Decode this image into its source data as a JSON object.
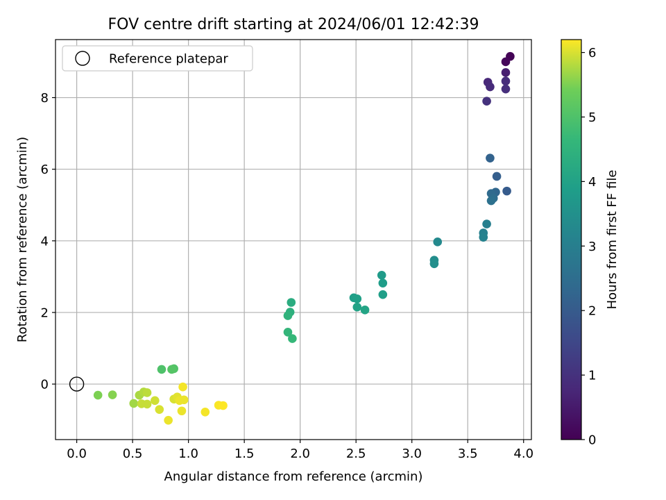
{
  "chart_data": {
    "type": "scatter",
    "title": "FOV centre drift starting at 2024/06/01 12:42:39",
    "xlabel": "Angular distance from reference (arcmin)",
    "ylabel": "Rotation from reference (arcmin)",
    "xlim": [
      -0.19,
      4.07
    ],
    "ylim": [
      -1.55,
      9.62
    ],
    "xticks": [
      0.0,
      0.5,
      1.0,
      1.5,
      2.0,
      2.5,
      3.0,
      3.5,
      4.0
    ],
    "xtick_labels": [
      "0.0",
      "0.5",
      "1.0",
      "1.5",
      "2.0",
      "2.5",
      "3.0",
      "3.5",
      "4.0"
    ],
    "yticks": [
      0,
      2,
      4,
      6,
      8
    ],
    "ytick_labels": [
      "0",
      "2",
      "4",
      "6",
      "8"
    ],
    "grid": true,
    "legend": {
      "placement": "top-left",
      "entries": [
        "Reference platepar"
      ]
    },
    "reference": {
      "x": 0.0,
      "y": 0.0,
      "label": "Reference platepar"
    },
    "colorbar": {
      "label": "Hours from first FF file",
      "range": [
        0,
        6.2
      ],
      "ticks": [
        0,
        1,
        2,
        3,
        4,
        5,
        6
      ],
      "tick_labels": [
        "0",
        "1",
        "2",
        "3",
        "4",
        "5",
        "6"
      ]
    },
    "points": [
      {
        "x": 3.88,
        "y": 9.15,
        "h": 0.05
      },
      {
        "x": 3.84,
        "y": 9.0,
        "h": 0.12
      },
      {
        "x": 3.84,
        "y": 8.7,
        "h": 0.6
      },
      {
        "x": 3.68,
        "y": 8.43,
        "h": 0.8
      },
      {
        "x": 3.7,
        "y": 8.3,
        "h": 0.85
      },
      {
        "x": 3.84,
        "y": 8.46,
        "h": 0.9
      },
      {
        "x": 3.84,
        "y": 8.24,
        "h": 0.95
      },
      {
        "x": 3.67,
        "y": 7.9,
        "h": 1.0
      },
      {
        "x": 3.7,
        "y": 6.31,
        "h": 2.2
      },
      {
        "x": 3.76,
        "y": 5.8,
        "h": 2.1
      },
      {
        "x": 3.85,
        "y": 5.39,
        "h": 2.0
      },
      {
        "x": 3.75,
        "y": 5.36,
        "h": 2.3
      },
      {
        "x": 3.71,
        "y": 5.32,
        "h": 2.4
      },
      {
        "x": 3.73,
        "y": 5.19,
        "h": 2.5
      },
      {
        "x": 3.71,
        "y": 5.12,
        "h": 2.6
      },
      {
        "x": 3.67,
        "y": 4.47,
        "h": 3.0
      },
      {
        "x": 3.64,
        "y": 4.22,
        "h": 3.05
      },
      {
        "x": 3.64,
        "y": 4.1,
        "h": 3.1
      },
      {
        "x": 3.23,
        "y": 3.97,
        "h": 3.3
      },
      {
        "x": 3.2,
        "y": 3.46,
        "h": 3.4
      },
      {
        "x": 3.2,
        "y": 3.36,
        "h": 3.45
      },
      {
        "x": 2.73,
        "y": 3.04,
        "h": 3.8
      },
      {
        "x": 2.74,
        "y": 2.82,
        "h": 3.85
      },
      {
        "x": 2.74,
        "y": 2.5,
        "h": 3.9
      },
      {
        "x": 2.48,
        "y": 2.41,
        "h": 3.9
      },
      {
        "x": 2.51,
        "y": 2.38,
        "h": 3.95
      },
      {
        "x": 2.51,
        "y": 2.15,
        "h": 4.0
      },
      {
        "x": 2.58,
        "y": 2.07,
        "h": 4.05
      },
      {
        "x": 1.92,
        "y": 2.28,
        "h": 4.3
      },
      {
        "x": 1.91,
        "y": 2.01,
        "h": 4.4
      },
      {
        "x": 1.89,
        "y": 1.91,
        "h": 4.5
      },
      {
        "x": 1.89,
        "y": 1.45,
        "h": 4.6
      },
      {
        "x": 1.93,
        "y": 1.27,
        "h": 4.65
      },
      {
        "x": 0.76,
        "y": 0.41,
        "h": 5.0
      },
      {
        "x": 0.87,
        "y": 0.43,
        "h": 5.05
      },
      {
        "x": 0.85,
        "y": 0.41,
        "h": 5.1
      },
      {
        "x": 0.19,
        "y": -0.31,
        "h": 5.5
      },
      {
        "x": 0.32,
        "y": -0.3,
        "h": 5.55
      },
      {
        "x": 0.51,
        "y": -0.54,
        "h": 5.7
      },
      {
        "x": 0.56,
        "y": -0.31,
        "h": 5.75
      },
      {
        "x": 0.6,
        "y": -0.22,
        "h": 5.8
      },
      {
        "x": 0.63,
        "y": -0.24,
        "h": 5.85
      },
      {
        "x": 0.58,
        "y": -0.55,
        "h": 5.9
      },
      {
        "x": 0.63,
        "y": -0.56,
        "h": 5.9
      },
      {
        "x": 0.7,
        "y": -0.46,
        "h": 5.95
      },
      {
        "x": 0.74,
        "y": -0.71,
        "h": 6.0
      },
      {
        "x": 0.82,
        "y": -1.01,
        "h": 6.1
      },
      {
        "x": 0.87,
        "y": -0.42,
        "h": 6.0
      },
      {
        "x": 0.9,
        "y": -0.36,
        "h": 6.05
      },
      {
        "x": 0.92,
        "y": -0.46,
        "h": 6.1
      },
      {
        "x": 0.94,
        "y": -0.75,
        "h": 6.1
      },
      {
        "x": 0.96,
        "y": -0.44,
        "h": 6.1
      },
      {
        "x": 0.95,
        "y": -0.08,
        "h": 6.15
      },
      {
        "x": 1.15,
        "y": -0.78,
        "h": 6.15
      },
      {
        "x": 1.27,
        "y": -0.59,
        "h": 6.18
      },
      {
        "x": 1.31,
        "y": -0.6,
        "h": 6.2
      }
    ]
  }
}
